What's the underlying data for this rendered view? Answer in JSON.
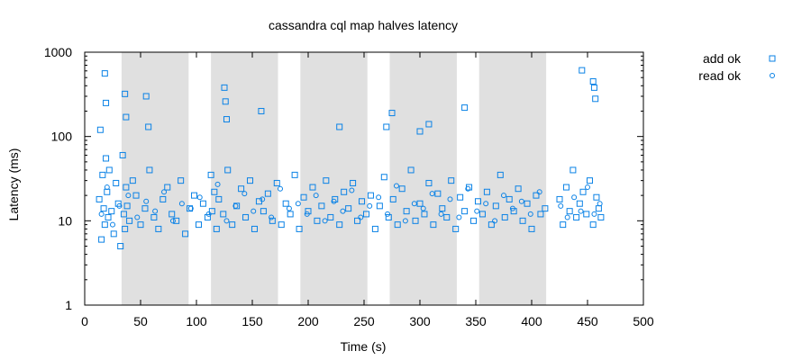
{
  "chart_data": {
    "type": "scatter",
    "title": "cassandra cql map halves latency",
    "xlabel": "Time (s)",
    "ylabel": "Latency (ms)",
    "xlim": [
      0,
      500
    ],
    "ylim": [
      1,
      1000
    ],
    "y_scale": "log",
    "grid": false,
    "legend_position": "top-right",
    "x_ticks": [
      "0",
      "50",
      "100",
      "150",
      "200",
      "250",
      "300",
      "350",
      "400",
      "450",
      "500"
    ],
    "y_ticks": [
      "1",
      "10",
      "100",
      "1000"
    ],
    "x_tick_values": [
      0,
      50,
      100,
      150,
      200,
      250,
      300,
      350,
      400,
      450,
      500
    ],
    "y_tick_values": [
      1,
      10,
      100,
      1000
    ],
    "shaded_intervals": [
      [
        33,
        93
      ],
      [
        113,
        173
      ],
      [
        193,
        253
      ],
      [
        273,
        333
      ],
      [
        353,
        413
      ]
    ],
    "shade_color": "#e0e0e0",
    "series": [
      {
        "name": "add ok",
        "marker": "square",
        "color": "#0a82e6",
        "x": [
          13,
          14,
          15,
          16,
          17,
          18,
          19,
          20,
          21,
          22,
          24,
          26,
          28,
          30,
          32,
          34,
          35,
          36,
          37,
          38,
          40,
          43,
          46,
          50,
          54,
          58,
          62,
          66,
          70,
          74,
          78,
          82,
          86,
          90,
          94,
          98,
          102,
          106,
          110,
          113,
          114,
          116,
          118,
          120,
          124,
          128,
          132,
          136,
          140,
          144,
          148,
          152,
          156,
          160,
          164,
          168,
          172,
          176,
          180,
          184,
          188,
          192,
          196,
          200,
          204,
          208,
          212,
          216,
          220,
          224,
          228,
          232,
          236,
          240,
          244,
          248,
          252,
          256,
          260,
          264,
          268,
          272,
          276,
          280,
          284,
          288,
          292,
          296,
          300,
          304,
          308,
          312,
          316,
          320,
          324,
          328,
          332,
          336,
          340,
          344,
          348,
          352,
          356,
          360,
          364,
          368,
          372,
          376,
          380,
          384,
          388,
          392,
          396,
          400,
          404,
          408,
          412,
          425,
          428,
          431,
          434,
          437,
          440,
          443,
          446,
          449,
          452,
          455,
          458,
          460,
          462,
          18,
          19,
          36,
          37,
          55,
          57,
          125,
          126,
          127,
          158,
          228,
          270,
          275,
          300,
          308,
          340,
          445,
          455,
          456,
          457
        ],
        "y": [
          18,
          120,
          6,
          35,
          14,
          9,
          55,
          22,
          11,
          40,
          13,
          7,
          28,
          16,
          5,
          60,
          12,
          8,
          25,
          15,
          10,
          30,
          20,
          9,
          14,
          40,
          11,
          8,
          18,
          25,
          12,
          10,
          30,
          7,
          14,
          20,
          9,
          16,
          11,
          35,
          13,
          22,
          8,
          18,
          12,
          40,
          9,
          15,
          24,
          11,
          30,
          8,
          17,
          13,
          21,
          10,
          28,
          9,
          16,
          12,
          35,
          8,
          19,
          13,
          25,
          10,
          15,
          30,
          11,
          18,
          9,
          22,
          14,
          28,
          10,
          17,
          12,
          20,
          8,
          15,
          33,
          11,
          18,
          9,
          24,
          13,
          40,
          10,
          16,
          12,
          28,
          9,
          21,
          14,
          11,
          30,
          8,
          19,
          13,
          25,
          10,
          17,
          12,
          22,
          9,
          15,
          35,
          11,
          18,
          13,
          24,
          10,
          16,
          8,
          20,
          12,
          14,
          18,
          9,
          25,
          13,
          40,
          11,
          16,
          22,
          12,
          30,
          9,
          19,
          14,
          11,
          560,
          250,
          320,
          170,
          300,
          130,
          380,
          260,
          160,
          200,
          130,
          130,
          190,
          115,
          140,
          220,
          610,
          450,
          380,
          280
        ]
      },
      {
        "name": "read ok",
        "marker": "circle",
        "color": "#0a82e6",
        "x": [
          15,
          20,
          25,
          31,
          39,
          47,
          55,
          63,
          71,
          79,
          87,
          95,
          103,
          111,
          119,
          127,
          135,
          143,
          151,
          159,
          167,
          175,
          183,
          191,
          199,
          207,
          215,
          223,
          231,
          239,
          247,
          255,
          263,
          271,
          279,
          287,
          295,
          303,
          311,
          319,
          327,
          335,
          343,
          351,
          359,
          367,
          375,
          383,
          391,
          399,
          407,
          426,
          432,
          438,
          444,
          450,
          456,
          461
        ],
        "y": [
          12,
          25,
          9,
          15,
          20,
          11,
          17,
          13,
          22,
          10,
          16,
          14,
          19,
          12,
          27,
          10,
          15,
          21,
          13,
          18,
          11,
          24,
          14,
          16,
          12,
          20,
          10,
          17,
          13,
          23,
          11,
          15,
          19,
          12,
          26,
          10,
          16,
          14,
          21,
          12,
          18,
          11,
          24,
          13,
          16,
          10,
          20,
          14,
          17,
          12,
          22,
          15,
          11,
          19,
          13,
          25,
          12,
          16
        ]
      }
    ]
  }
}
